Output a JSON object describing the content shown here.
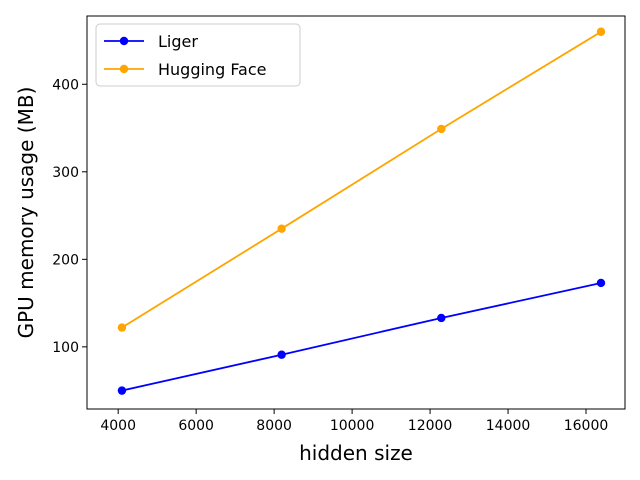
{
  "chart_data": {
    "type": "line",
    "title": "",
    "xlabel": "hidden size",
    "ylabel": "GPU memory usage (MB)",
    "x": [
      4096,
      8192,
      12288,
      16384
    ],
    "xlim": [
      3200,
      17000
    ],
    "ylim": [
      29,
      478
    ],
    "xticks": [
      4000,
      6000,
      8000,
      10000,
      12000,
      14000,
      16000
    ],
    "yticks": [
      100,
      200,
      300,
      400
    ],
    "grid": false,
    "legend_position": "upper-left",
    "series": [
      {
        "name": "Liger",
        "color": "#0000ff",
        "values": [
          50,
          91,
          133,
          173
        ]
      },
      {
        "name": "Hugging Face",
        "color": "#ffa500",
        "values": [
          122,
          235,
          349,
          460
        ]
      }
    ]
  }
}
